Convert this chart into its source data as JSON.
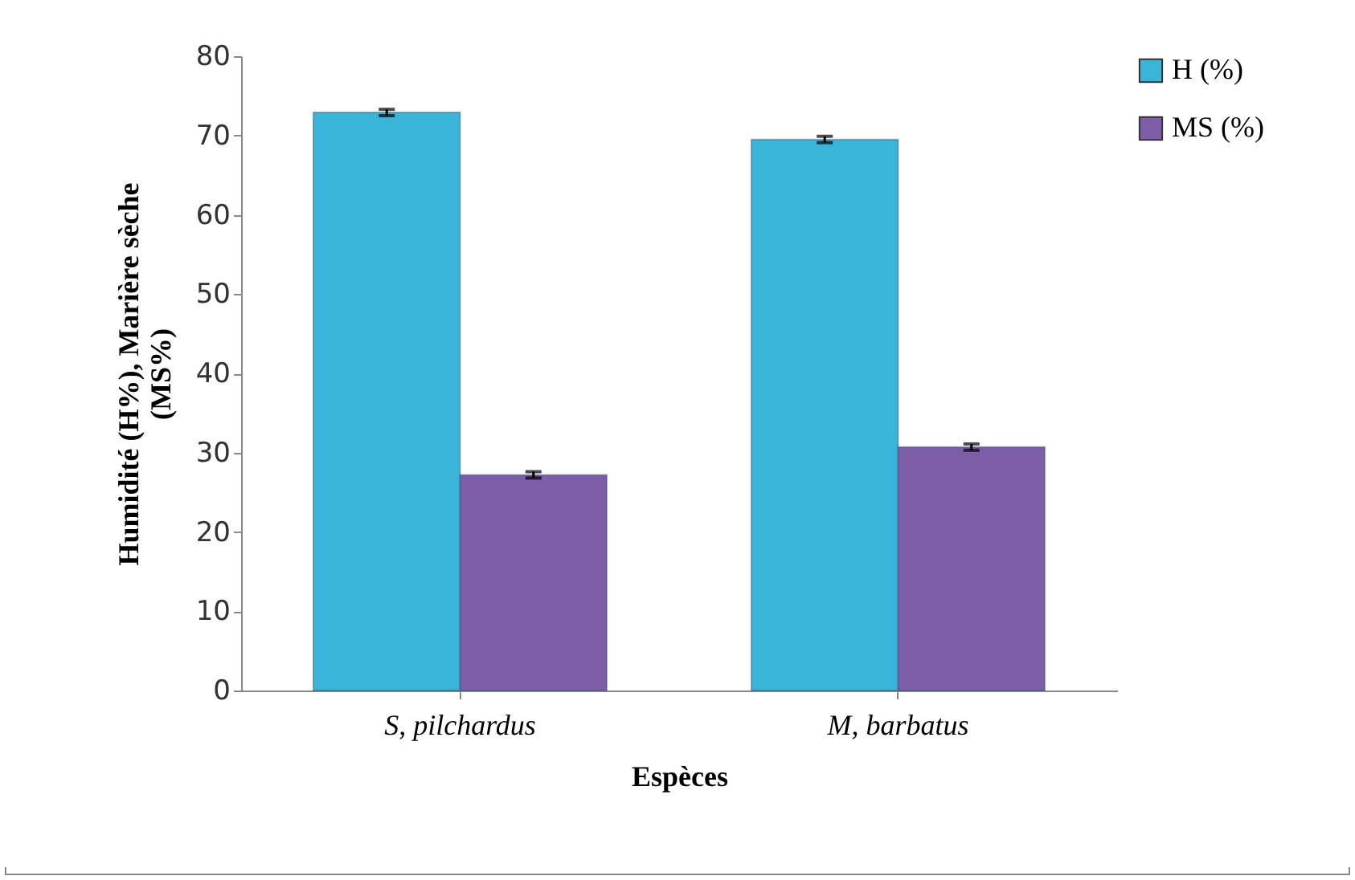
{
  "chart_data": {
    "type": "bar",
    "xlabel": "Espèces",
    "ylabel": "Humidité (H%), Marière sèche (MS%)",
    "categories": [
      "S, pilchardus",
      "M, barbatus"
    ],
    "series": [
      {
        "name": "H (%)",
        "color": "#3ab4d8",
        "values": [
          72.9,
          69.5
        ],
        "errors": [
          0.4,
          0.4
        ]
      },
      {
        "name": "MS (%)",
        "color": "#7d5ca8",
        "values": [
          27.2,
          30.7
        ],
        "errors": [
          0.4,
          0.4
        ]
      }
    ],
    "ylim": [
      0,
      80
    ],
    "yticks": [
      0,
      10,
      20,
      30,
      40,
      50,
      60,
      70,
      80
    ],
    "grid": false,
    "legend": "right"
  }
}
